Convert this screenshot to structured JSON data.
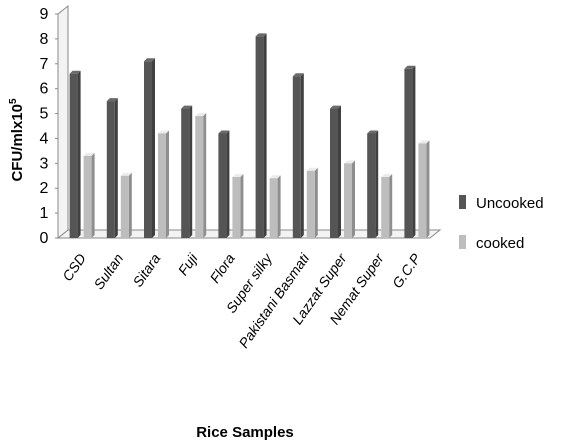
{
  "chart_data": {
    "type": "bar",
    "categories": [
      "CSD",
      "Sultan",
      "Sitara",
      "Fuji",
      "Flora",
      "Super silky",
      "Pakistani Basmati",
      "Lazzat Super",
      "Nemat Super",
      "G.C.P"
    ],
    "series": [
      {
        "name": "Uncooked",
        "values": [
          6.6,
          5.5,
          7.1,
          5.2,
          4.2,
          8.1,
          6.5,
          5.2,
          4.2,
          6.8
        ],
        "color": "#555555"
      },
      {
        "name": "cooked",
        "values": [
          3.3,
          2.5,
          4.2,
          4.9,
          2.45,
          2.4,
          2.7,
          3.0,
          2.45,
          3.8
        ],
        "color": "#bdbdbd"
      }
    ],
    "xlabel": "Rice Samples",
    "ylabel": "CFU/mlx10",
    "ylabel_superscript": "5",
    "ylim": [
      0,
      9
    ],
    "yticks": [
      "0",
      "1",
      "2",
      "3",
      "4",
      "5",
      "6",
      "7",
      "8",
      "9"
    ],
    "grid": false,
    "legend_position": "right"
  }
}
